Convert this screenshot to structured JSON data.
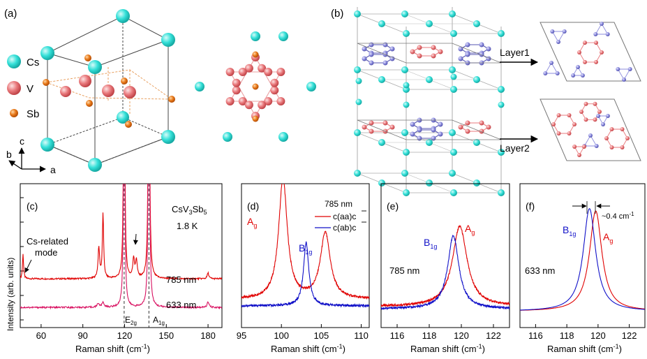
{
  "colors": {
    "cs": "#34e0d8",
    "v": "#e9797c",
    "sb": "#e8791a",
    "vBlue": "#8b8bdc",
    "red": "#e00000",
    "blue": "#1010c8",
    "magenta": "#d81060",
    "dashLine": "#444444",
    "box": "#333333",
    "gray": "#888888"
  },
  "panelA": {
    "label": "(a)",
    "legend": [
      {
        "symbol": "cs-atom",
        "text": "Cs"
      },
      {
        "symbol": "v-atom",
        "text": "V"
      },
      {
        "symbol": "sb-atom",
        "text": "Sb"
      }
    ],
    "axes": {
      "c": "c",
      "b": "b",
      "a": "a"
    }
  },
  "panelB": {
    "label": "(b)",
    "layer1": "Layer1",
    "layer2": "Layer2"
  },
  "panelC": {
    "label": "(c)",
    "sample": "CsV",
    "sampleSub": "3",
    "sampleMid": "Sb",
    "sampleSub2": "5",
    "temperature": "1.8 K",
    "annotationLine1": "Cs-related",
    "annotationLine2": "mode",
    "trace1": "785 nm",
    "trace2": "633 nm",
    "peak1": "E",
    "peak1Sub": "2g",
    "peak2": "A",
    "peak2Sub": "1g",
    "ylabel": "Intensity (arb. units)",
    "xlabel": "Raman shift (cm",
    "xlabelSup": "-1",
    "xlabelEnd": ")"
  },
  "panelD": {
    "label": "(d)",
    "laser": "785 nm",
    "legend1": "c(aa)c",
    "legend2": "c(ab)c",
    "mode1": "A",
    "mode1Sub": "g",
    "mode2": "B",
    "mode2Sub": "1g",
    "xlabel": "Raman shift (cm",
    "xlabelSup": "-1",
    "xlabelEnd": ")"
  },
  "panelE": {
    "label": "(e)",
    "laser": "785 nm",
    "mode1": "B",
    "mode1Sub": "1g",
    "mode2": "A",
    "mode2Sub": "g",
    "xlabel": "Raman shift (cm",
    "xlabelSup": "-1",
    "xlabelEnd": ")"
  },
  "panelF": {
    "label": "(f)",
    "laser": "633 nm",
    "mode1": "B",
    "mode1Sub": "1g",
    "mode2": "A",
    "mode2Sub": "g",
    "shift": "~0.4 cm",
    "shiftSup": "-1",
    "xlabel": "Raman shift (cm",
    "xlabelSup": "-1",
    "xlabelEnd": ")"
  },
  "chart_data": [
    {
      "id": "c",
      "type": "line",
      "xlim": [
        45,
        190
      ],
      "xticks": [
        60,
        90,
        120,
        150,
        180
      ],
      "dashed_x": [
        119.7,
        137.5
      ],
      "series": [
        {
          "name": "785 nm",
          "color": "#e00000",
          "baseline": 0.35,
          "peaks": [
            [
              47,
              1.3,
              0.45
            ],
            [
              101.5,
              1.55,
              0.7
            ],
            [
              104.5,
              3.3,
              0.55
            ],
            [
              119.7,
              15,
              0.5
            ],
            [
              126.5,
              1.0,
              0.7
            ],
            [
              128.5,
              0.9,
              0.7
            ],
            [
              137.5,
              18,
              0.5
            ],
            [
              180,
              0.3,
              0.7
            ]
          ]
        },
        {
          "name": "633 nm",
          "color": "#d81060",
          "baseline": 0.1,
          "peaks": [
            [
              101,
              0.2,
              0.9
            ],
            [
              104.5,
              0.25,
              0.9
            ],
            [
              119.7,
              15,
              0.5
            ],
            [
              137.5,
              18,
              0.5
            ],
            [
              180,
              0.28,
              0.8
            ]
          ]
        }
      ]
    },
    {
      "id": "d",
      "type": "line",
      "xlim": [
        95,
        111
      ],
      "xticks": [
        95,
        100,
        105,
        110
      ],
      "series": [
        {
          "name": "c(aa)c",
          "color": "#e00000",
          "baseline": 0.1,
          "peaks": [
            [
              100.2,
              0.95,
              0.65
            ],
            [
              105.5,
              0.52,
              0.75
            ]
          ]
        },
        {
          "name": "c(ab)c",
          "color": "#1010c8",
          "baseline": 0.05,
          "peaks": [
            [
              103.1,
              0.5,
              0.4
            ]
          ]
        }
      ]
    },
    {
      "id": "e",
      "type": "line",
      "xlim": [
        115,
        123
      ],
      "xticks": [
        116,
        118,
        120,
        122
      ],
      "series": [
        {
          "name": "A_g",
          "color": "#e00000",
          "baseline": 0.06,
          "peaks": [
            [
              119.9,
              0.68,
              0.55
            ]
          ]
        },
        {
          "name": "B_1g",
          "color": "#1010c8",
          "baseline": 0.04,
          "peaks": [
            [
              119.5,
              0.62,
              0.42
            ]
          ]
        }
      ]
    },
    {
      "id": "f",
      "type": "line",
      "xlim": [
        115,
        123
      ],
      "xticks": [
        116,
        118,
        120,
        122
      ],
      "series": [
        {
          "name": "A_g",
          "color": "#e00000",
          "baseline": 0.02,
          "peaks": [
            [
              119.85,
              0.85,
              0.48
            ]
          ]
        },
        {
          "name": "B_1g",
          "color": "#1010c8",
          "baseline": 0.02,
          "peaks": [
            [
              119.45,
              0.87,
              0.48
            ]
          ]
        }
      ]
    }
  ]
}
